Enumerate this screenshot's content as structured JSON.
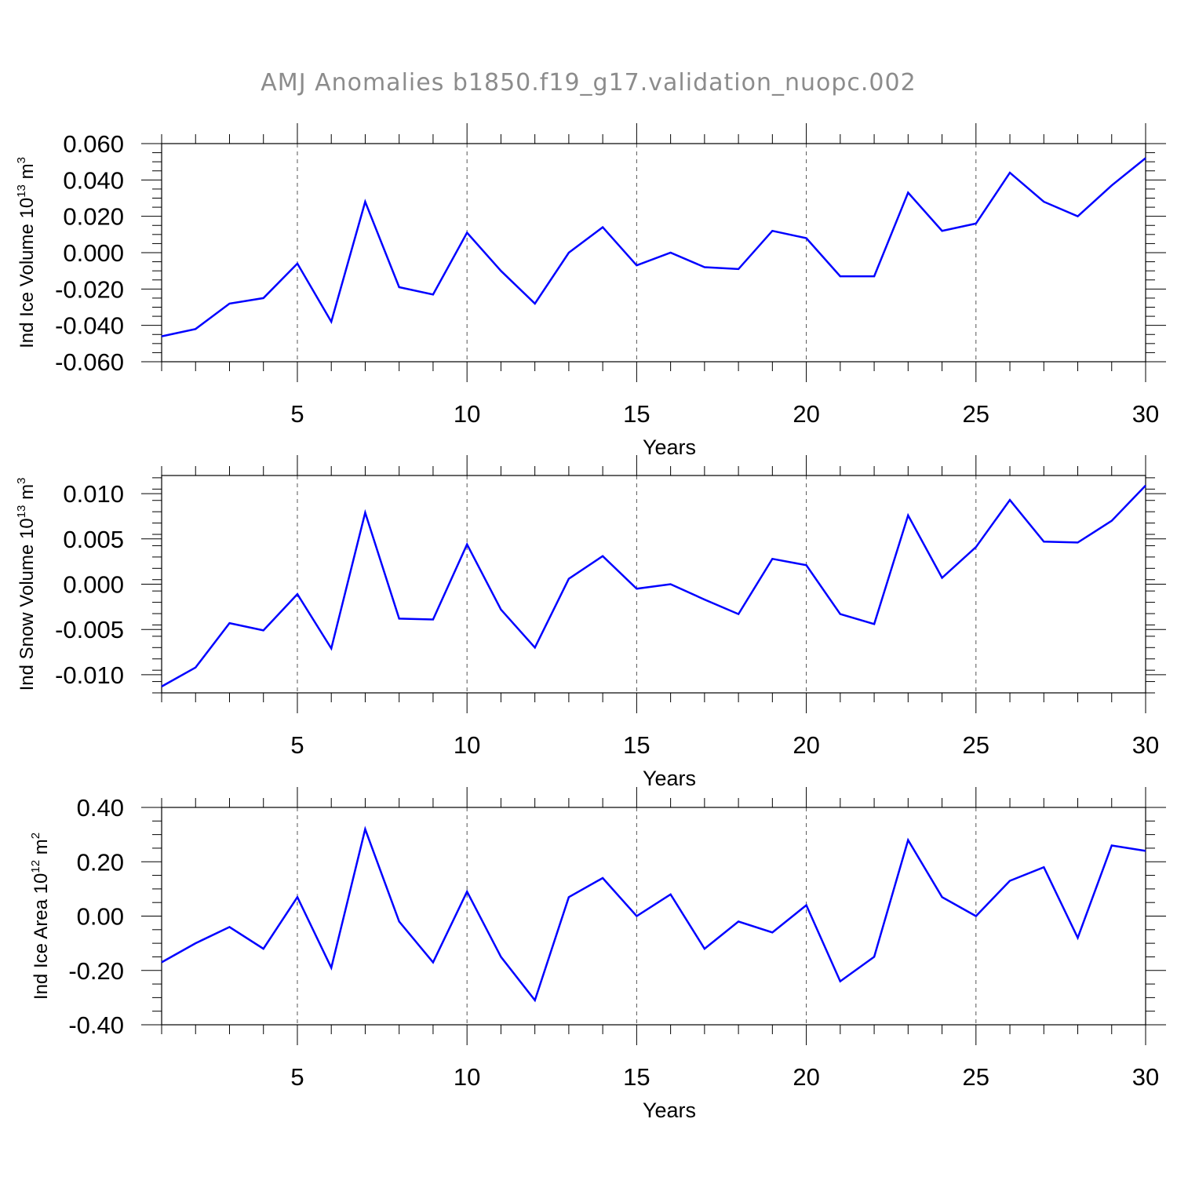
{
  "title": "AMJ Anomalies b1850.f19_g17.validation_nuopc.002",
  "chart_data": [
    {
      "type": "line",
      "ylabel_main": "Ind Ice Volume 10",
      "ylabel_exp": "13",
      "ylabel_unit": " m",
      "ylabel_unit_exp": "3",
      "xlabel": "Years",
      "xlim": [
        1,
        30
      ],
      "ylim": [
        -0.06,
        0.06
      ],
      "xticks": [
        "5",
        "10",
        "15",
        "20",
        "25",
        "30"
      ],
      "yticks": [
        "-0.060",
        "-0.040",
        "-0.020",
        "0.000",
        "0.020",
        "0.040",
        "0.060"
      ],
      "color": "#0000ff",
      "x": [
        1,
        2,
        3,
        4,
        5,
        6,
        7,
        8,
        9,
        10,
        11,
        12,
        13,
        14,
        15,
        16,
        17,
        18,
        19,
        20,
        21,
        22,
        23,
        24,
        25,
        26,
        27,
        28,
        29,
        30
      ],
      "values": [
        -0.046,
        -0.042,
        -0.028,
        -0.025,
        -0.006,
        -0.038,
        0.028,
        -0.019,
        -0.023,
        0.011,
        -0.01,
        -0.028,
        0.0,
        0.014,
        -0.007,
        0.0,
        -0.008,
        -0.009,
        0.012,
        0.008,
        -0.013,
        -0.013,
        0.033,
        0.012,
        0.016,
        0.044,
        0.028,
        0.02,
        0.037,
        0.052
      ]
    },
    {
      "type": "line",
      "ylabel_main": "Ind Snow Volume 10",
      "ylabel_exp": "13",
      "ylabel_unit": " m",
      "ylabel_unit_exp": "3",
      "xlabel": "Years",
      "xlim": [
        1,
        30
      ],
      "ylim": [
        -0.012,
        0.012
      ],
      "xticks": [
        "5",
        "10",
        "15",
        "20",
        "25",
        "30"
      ],
      "yticks": [
        "-0.010",
        "-0.005",
        "0.000",
        "0.005",
        "0.010"
      ],
      "color": "#0000ff",
      "x": [
        1,
        2,
        3,
        4,
        5,
        6,
        7,
        8,
        9,
        10,
        11,
        12,
        13,
        14,
        15,
        16,
        17,
        18,
        19,
        20,
        21,
        22,
        23,
        24,
        25,
        26,
        27,
        28,
        29,
        30
      ],
      "values": [
        -0.0113,
        -0.0092,
        -0.0043,
        -0.0051,
        -0.0011,
        -0.0071,
        0.0079,
        -0.0038,
        -0.0039,
        0.0044,
        -0.0028,
        -0.007,
        0.0006,
        0.0031,
        -0.0005,
        0.0,
        -0.0017,
        -0.0033,
        0.0028,
        0.0021,
        -0.0033,
        -0.0044,
        0.0076,
        0.0007,
        0.0041,
        0.0093,
        0.0047,
        0.0046,
        0.007,
        0.0109
      ]
    },
    {
      "type": "line",
      "ylabel_main": "Ind Ice Area 10",
      "ylabel_exp": "12",
      "ylabel_unit": " m",
      "ylabel_unit_exp": "2",
      "xlabel": "Years",
      "xlim": [
        1,
        30
      ],
      "ylim": [
        -0.4,
        0.4
      ],
      "xticks": [
        "5",
        "10",
        "15",
        "20",
        "25",
        "30"
      ],
      "yticks": [
        "-0.40",
        "-0.20",
        "0.00",
        "0.20",
        "0.40"
      ],
      "color": "#0000ff",
      "x": [
        1,
        2,
        3,
        4,
        5,
        6,
        7,
        8,
        9,
        10,
        11,
        12,
        13,
        14,
        15,
        16,
        17,
        18,
        19,
        20,
        21,
        22,
        23,
        24,
        25,
        26,
        27,
        28,
        29,
        30
      ],
      "values": [
        -0.17,
        -0.1,
        -0.04,
        -0.12,
        0.07,
        -0.19,
        0.32,
        -0.02,
        -0.17,
        0.09,
        -0.15,
        -0.31,
        0.07,
        0.14,
        0.0,
        0.08,
        -0.12,
        -0.02,
        -0.06,
        0.04,
        -0.24,
        -0.15,
        0.28,
        0.07,
        0.0,
        0.13,
        0.18,
        -0.08,
        0.26,
        0.24
      ]
    }
  ]
}
